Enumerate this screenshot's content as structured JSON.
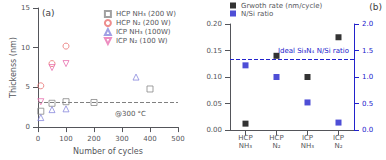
{
  "chart_data": [
    {
      "type": "scatter",
      "title": "(a)",
      "x_label": "Number of cycles",
      "y_label": "Thickenss (nm)",
      "annotations": [
        "@300 °C"
      ],
      "series": [
        {
          "name": "HCP NH₃ (200 W)",
          "color": "#888888",
          "marker": "open_square",
          "x": [
            10,
            50,
            100,
            200,
            400
          ],
          "values": [
            2.0,
            3.0,
            3.2,
            3.1,
            4.8
          ]
        },
        {
          "name": "HCP N₂ (200 W)",
          "color": "#e87070",
          "marker": "open_circle",
          "x": [
            10,
            50,
            100
          ],
          "values": [
            5.2,
            8.0,
            10.2
          ]
        },
        {
          "name": "ICP NH₃ (100W)",
          "color": "#8888dd",
          "marker": "open_triangle_up",
          "x": [
            10,
            50,
            100,
            350
          ],
          "values": [
            1.2,
            2.2,
            2.3,
            6.3
          ]
        },
        {
          "name": "ICP N₂ (100 W)",
          "color": "#e870b0",
          "marker": "open_triangle_down",
          "x": [
            10,
            50,
            100
          ],
          "values": [
            3.2,
            7.5,
            8.0
          ]
        }
      ],
      "reference_lines": [
        {
          "y": 3.1,
          "color": "#808080",
          "line_style": "dashed"
        }
      ],
      "xlim": [
        0,
        500
      ],
      "xticks": [
        0,
        100,
        200,
        300,
        400,
        500
      ],
      "ylim": [
        0,
        15
      ],
      "yticks": [
        0,
        5,
        10,
        15
      ],
      "grid": false,
      "legend": "upper right"
    },
    {
      "type": "scatter",
      "title": "(b)",
      "categories": [
        "HCP\nNH₃",
        "HCP\nN₂",
        "ICP\nNH₃",
        "ICP\nN₂"
      ],
      "series": [
        {
          "name": "Grwoth rate (nm/cycle)",
          "color": "#000000",
          "marker": "square",
          "values": [
            0.012,
            0.14,
            0.1,
            0.175
          ]
        },
        {
          "name": "N/Si ratio",
          "color": "#2222cc",
          "marker": "square",
          "axis": "y2",
          "values": [
            1.22,
            1.0,
            0.52,
            0.14
          ]
        }
      ],
      "reference_lines": [
        {
          "y": 1.333,
          "axis": "y2",
          "color": "#2222cc",
          "line_style": "dashed",
          "label": "Ideal Si₃N₄ N/Si ratio"
        }
      ],
      "ylim": [
        0,
        0.2
      ],
      "yticks": [
        {
          "value": 0,
          "label": "0.00"
        },
        0.05,
        {
          "value": 0.1,
          "label": "0.10"
        },
        0.15,
        {
          "value": 0.2,
          "label": "0.20"
        }
      ],
      "y2lim": [
        0,
        2.0
      ],
      "y2ticks": [
        {
          "value": 0,
          "label": "0.0"
        },
        0.5,
        {
          "value": 1,
          "label": "1.0"
        },
        1.5,
        {
          "value": 2,
          "label": "2.0"
        }
      ],
      "grid": false,
      "legend": "upper left"
    }
  ]
}
